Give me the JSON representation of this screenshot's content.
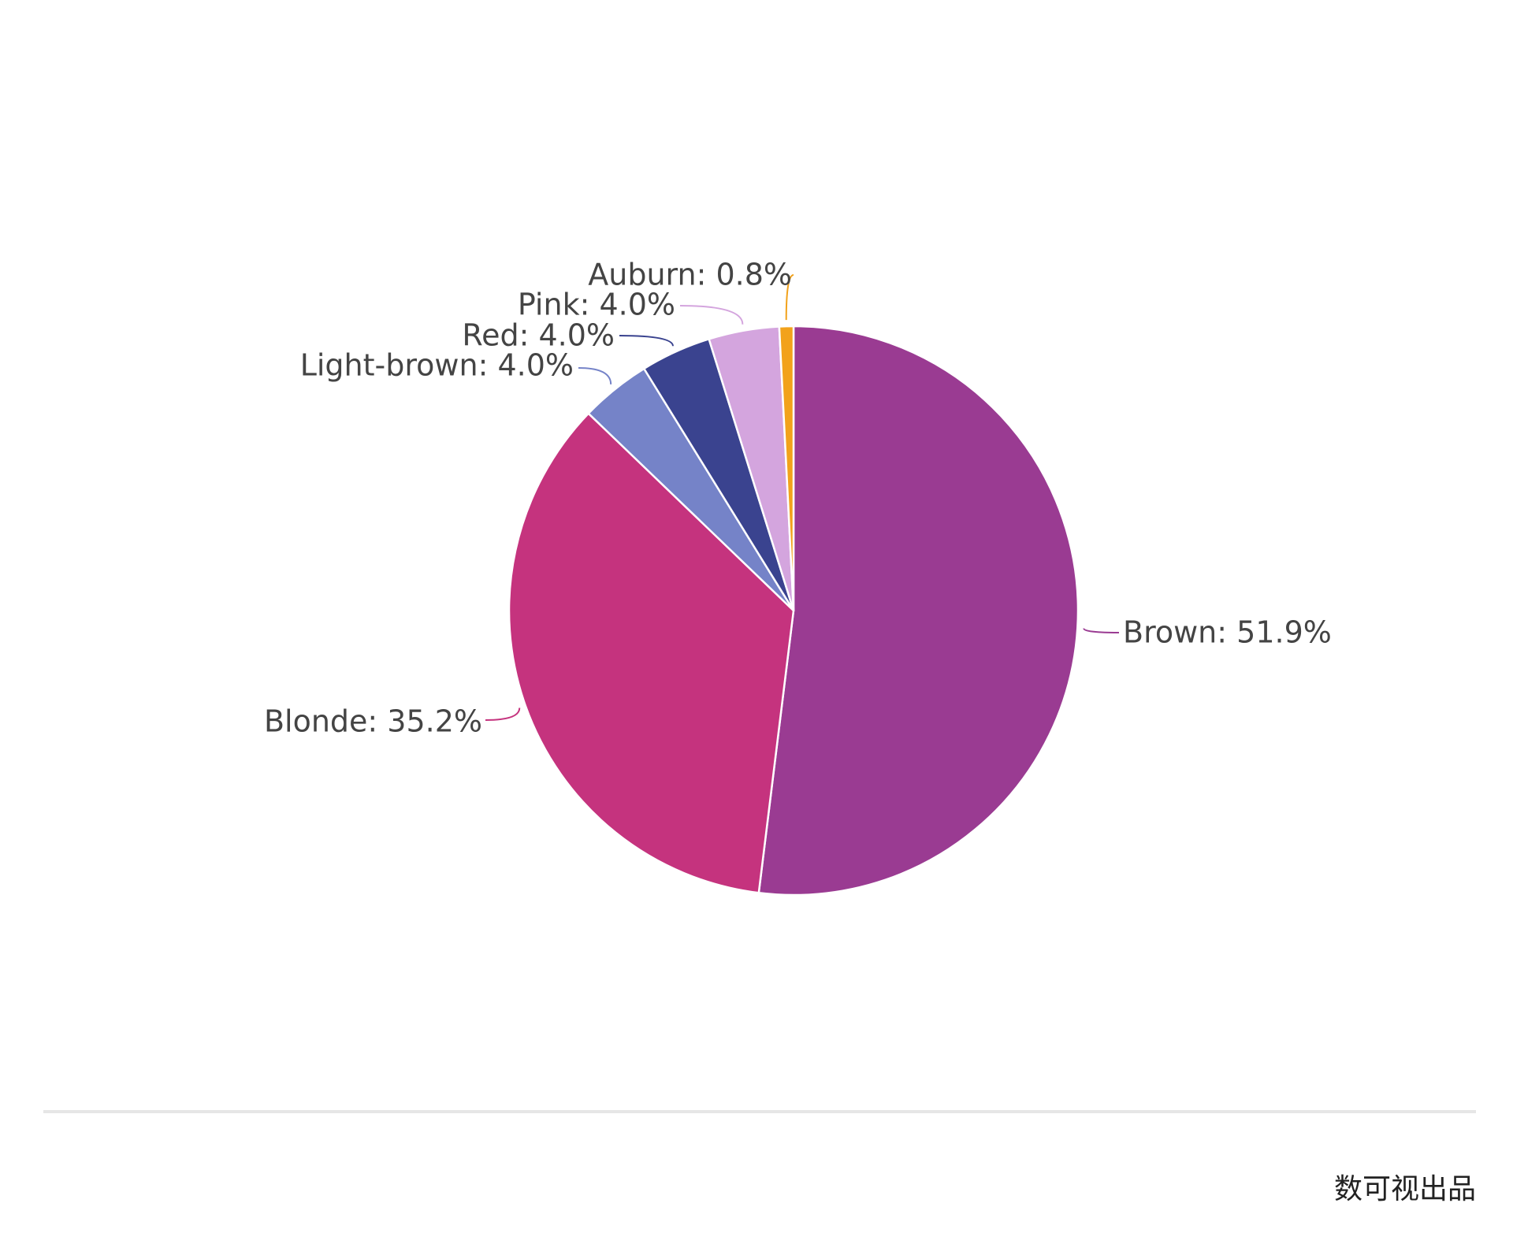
{
  "chart_data": {
    "type": "pie",
    "title": "",
    "slices": [
      {
        "name": "Brown",
        "value": 51.9,
        "label": "Brown: 51.9%",
        "color": "#9a3b92"
      },
      {
        "name": "Blonde",
        "value": 35.2,
        "label": "Blonde: 35.2%",
        "color": "#c5337e"
      },
      {
        "name": "Light-brown",
        "value": 4.0,
        "label": "Light-brown: 4.0%",
        "color": "#7583c8"
      },
      {
        "name": "Red",
        "value": 4.0,
        "label": "Red: 4.0%",
        "color": "#3a438f"
      },
      {
        "name": "Pink",
        "value": 4.0,
        "label": "Pink: 4.0%",
        "color": "#d4a5de"
      },
      {
        "name": "Auburn",
        "value": 0.8,
        "label": "Auburn: 0.8%",
        "color": "#f2a21b"
      }
    ],
    "start_angle": "12 o'clock",
    "direction": "clockwise",
    "legend": "none"
  },
  "footer": {
    "credit": "数可视出品"
  }
}
